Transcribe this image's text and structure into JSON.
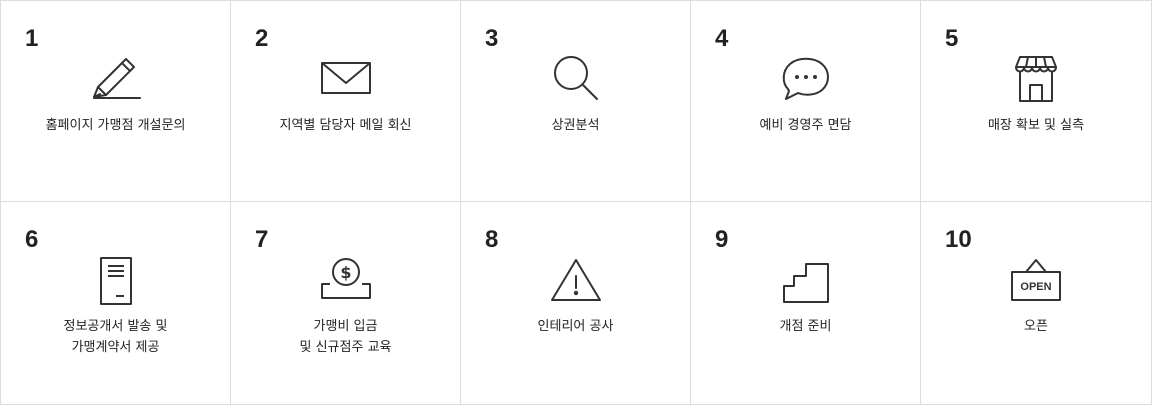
{
  "steps": [
    {
      "number": "1",
      "icon": "pencil-icon",
      "lines": [
        "홈페이지 가맹점 개설문의"
      ]
    },
    {
      "number": "2",
      "icon": "envelope-icon",
      "lines": [
        "지역별 담당자 메일 회신"
      ]
    },
    {
      "number": "3",
      "icon": "magnifier-icon",
      "lines": [
        "상권분석"
      ]
    },
    {
      "number": "4",
      "icon": "chat-bubble-icon",
      "lines": [
        "예비 경영주 면담"
      ]
    },
    {
      "number": "5",
      "icon": "storefront-icon",
      "lines": [
        "매장 확보 및 실측"
      ]
    },
    {
      "number": "6",
      "icon": "document-icon",
      "lines": [
        "정보공개서 발송 및",
        "가맹계약서 제공"
      ]
    },
    {
      "number": "7",
      "icon": "coin-icon",
      "lines": [
        "가맹비 입금",
        "및 신규점주 교육"
      ]
    },
    {
      "number": "8",
      "icon": "warning-icon",
      "lines": [
        "인테리어 공사"
      ]
    },
    {
      "number": "9",
      "icon": "stairs-icon",
      "lines": [
        "개점 준비"
      ]
    },
    {
      "number": "10",
      "icon": "open-sign-icon",
      "lines": [
        "오픈"
      ],
      "sign_text": "OPEN"
    }
  ]
}
